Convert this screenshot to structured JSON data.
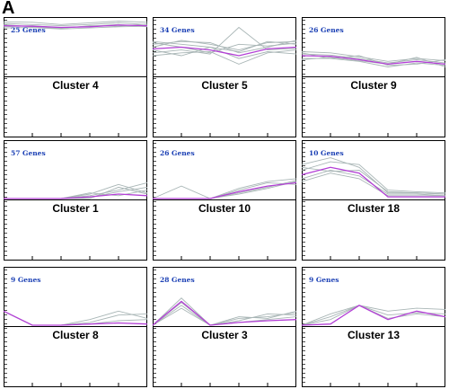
{
  "panel_letter": "A",
  "colors": {
    "member": "#a9b6b6",
    "centroid": "#b33fd6",
    "count_text": "#1a3fb4",
    "axis": "#000000",
    "background": "#ffffff"
  },
  "chart_data": [
    {
      "type": "line",
      "cluster": "Cluster 4",
      "count_label": "25 Genes",
      "ylim": [
        0,
        1
      ],
      "x": [
        1,
        2,
        3,
        4,
        5,
        6
      ],
      "centroid": [
        0.88,
        0.87,
        0.85,
        0.86,
        0.89,
        0.88
      ],
      "members": [
        [
          0.92,
          0.9,
          0.88,
          0.9,
          0.93,
          0.9
        ],
        [
          0.84,
          0.85,
          0.82,
          0.84,
          0.86,
          0.87
        ],
        [
          0.95,
          0.94,
          0.9,
          0.93,
          0.96,
          0.94
        ],
        [
          0.86,
          0.88,
          0.84,
          0.87,
          0.9,
          0.86
        ],
        [
          0.9,
          0.86,
          0.83,
          0.88,
          0.87,
          0.91
        ]
      ]
    },
    {
      "type": "line",
      "cluster": "Cluster 5",
      "count_label": "34 Genes",
      "ylim": [
        0,
        1
      ],
      "x": [
        1,
        2,
        3,
        4,
        5,
        6
      ],
      "centroid": [
        0.47,
        0.5,
        0.45,
        0.35,
        0.47,
        0.5
      ],
      "members": [
        [
          0.55,
          0.6,
          0.58,
          0.4,
          0.5,
          0.62
        ],
        [
          0.4,
          0.45,
          0.38,
          0.85,
          0.45,
          0.48
        ],
        [
          0.6,
          0.55,
          0.5,
          0.42,
          0.6,
          0.55
        ],
        [
          0.35,
          0.4,
          0.42,
          0.2,
          0.4,
          0.45
        ],
        [
          0.5,
          0.62,
          0.55,
          0.45,
          0.58,
          0.6
        ],
        [
          0.45,
          0.35,
          0.5,
          0.3,
          0.42,
          0.38
        ],
        [
          0.58,
          0.5,
          0.4,
          0.55,
          0.52,
          0.57
        ]
      ]
    },
    {
      "type": "line",
      "cluster": "Cluster 9",
      "count_label": "26 Genes",
      "ylim": [
        0,
        1
      ],
      "x": [
        1,
        2,
        3,
        4,
        5,
        6
      ],
      "centroid": [
        0.35,
        0.34,
        0.28,
        0.2,
        0.25,
        0.2
      ],
      "members": [
        [
          0.42,
          0.4,
          0.33,
          0.25,
          0.3,
          0.26
        ],
        [
          0.3,
          0.3,
          0.25,
          0.15,
          0.22,
          0.18
        ],
        [
          0.38,
          0.36,
          0.3,
          0.22,
          0.28,
          0.22
        ],
        [
          0.28,
          0.32,
          0.26,
          0.2,
          0.32,
          0.15
        ],
        [
          0.4,
          0.3,
          0.35,
          0.18,
          0.2,
          0.28
        ]
      ]
    },
    {
      "type": "line",
      "cluster": "Cluster 1",
      "count_label": "57 Genes",
      "ylim": [
        0,
        1
      ],
      "x": [
        1,
        2,
        3,
        4,
        5,
        6
      ],
      "centroid": [
        0.0,
        0.0,
        0.0,
        0.03,
        0.08,
        0.05
      ],
      "members": [
        [
          0.0,
          0.0,
          0.0,
          0.08,
          0.25,
          0.1
        ],
        [
          0.0,
          0.0,
          0.0,
          0.05,
          0.15,
          0.28
        ],
        [
          0.0,
          0.0,
          0.0,
          0.02,
          0.12,
          0.2
        ],
        [
          0.0,
          0.0,
          0.0,
          0.1,
          0.05,
          0.15
        ],
        [
          0.0,
          0.0,
          0.0,
          0.0,
          0.2,
          0.08
        ]
      ]
    },
    {
      "type": "line",
      "cluster": "Cluster 10",
      "count_label": "26 Genes",
      "ylim": [
        0,
        1
      ],
      "x": [
        1,
        2,
        3,
        4,
        5,
        6
      ],
      "centroid": [
        0.0,
        0.0,
        0.0,
        0.12,
        0.22,
        0.28
      ],
      "members": [
        [
          0.0,
          0.22,
          0.0,
          0.18,
          0.3,
          0.35
        ],
        [
          0.0,
          0.0,
          0.0,
          0.08,
          0.18,
          0.3
        ],
        [
          0.0,
          0.0,
          0.0,
          0.15,
          0.28,
          0.25
        ],
        [
          0.0,
          0.0,
          0.0,
          0.1,
          0.2,
          0.32
        ]
      ]
    },
    {
      "type": "line",
      "cluster": "Cluster 18",
      "count_label": "10 Genes",
      "ylim": [
        0,
        1
      ],
      "x": [
        1,
        2,
        3,
        4,
        5,
        6
      ],
      "centroid": [
        0.42,
        0.55,
        0.45,
        0.03,
        0.03,
        0.03
      ],
      "members": [
        [
          0.6,
          0.72,
          0.55,
          0.1,
          0.1,
          0.08
        ],
        [
          0.3,
          0.45,
          0.35,
          0.05,
          0.05,
          0.05
        ],
        [
          0.5,
          0.65,
          0.6,
          0.15,
          0.12,
          0.1
        ],
        [
          0.35,
          0.5,
          0.4,
          0.08,
          0.08,
          0.05
        ],
        [
          0.55,
          0.48,
          0.5,
          0.12,
          0.1,
          0.08
        ]
      ]
    },
    {
      "type": "line",
      "cluster": "Cluster 8",
      "count_label": "9 Genes",
      "ylim": [
        0,
        1
      ],
      "x": [
        1,
        2,
        3,
        4,
        5,
        6
      ],
      "centroid": [
        0.25,
        0.0,
        0.0,
        0.02,
        0.04,
        0.02
      ],
      "members": [
        [
          0.25,
          0.0,
          0.0,
          0.1,
          0.25,
          0.12
        ],
        [
          0.25,
          0.0,
          0.0,
          0.05,
          0.18,
          0.2
        ],
        [
          0.25,
          0.0,
          0.0,
          0.02,
          0.08,
          0.1
        ]
      ]
    },
    {
      "type": "line",
      "cluster": "Cluster 3",
      "count_label": "28 Genes",
      "ylim": [
        0,
        1
      ],
      "x": [
        1,
        2,
        3,
        4,
        5,
        6
      ],
      "centroid": [
        0.0,
        0.42,
        0.0,
        0.05,
        0.08,
        0.1
      ],
      "members": [
        [
          0.0,
          0.48,
          0.0,
          0.12,
          0.15,
          0.22
        ],
        [
          0.0,
          0.35,
          0.0,
          0.08,
          0.2,
          0.18
        ],
        [
          0.0,
          0.4,
          0.0,
          0.15,
          0.12,
          0.25
        ],
        [
          0.0,
          0.3,
          0.0,
          0.05,
          0.1,
          0.15
        ]
      ]
    },
    {
      "type": "line",
      "cluster": "Cluster 13",
      "count_label": "9 Genes",
      "ylim": [
        0,
        1
      ],
      "x": [
        1,
        2,
        3,
        4,
        5,
        6
      ],
      "centroid": [
        0.0,
        0.02,
        0.35,
        0.1,
        0.25,
        0.15
      ],
      "members": [
        [
          0.0,
          0.2,
          0.35,
          0.25,
          0.3,
          0.28
        ],
        [
          0.0,
          0.15,
          0.35,
          0.18,
          0.22,
          0.2
        ],
        [
          0.0,
          0.1,
          0.35,
          0.12,
          0.2,
          0.15
        ]
      ]
    }
  ]
}
